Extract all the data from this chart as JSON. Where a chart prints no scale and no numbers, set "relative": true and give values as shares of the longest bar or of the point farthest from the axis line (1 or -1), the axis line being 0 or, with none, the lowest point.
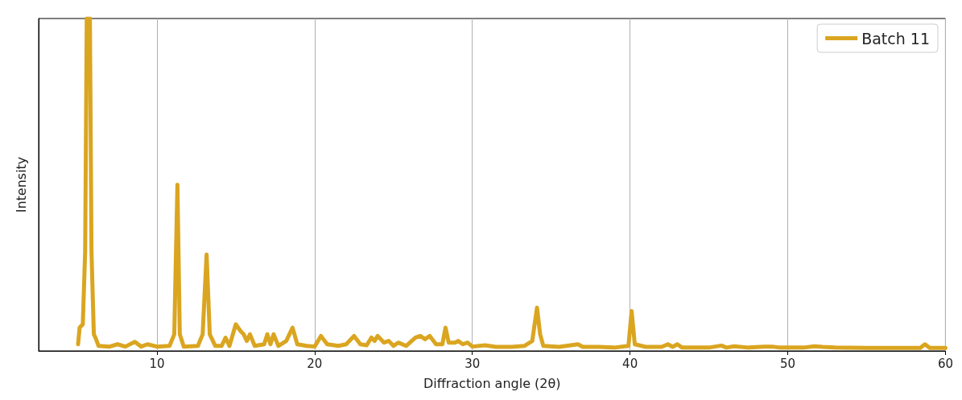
{
  "chart_data": {
    "type": "line",
    "relative": true,
    "xlabel": "Diffraction angle (2θ)",
    "ylabel": "Intensity",
    "xlim": [
      2.5,
      60
    ],
    "xticks": [
      10,
      20,
      30,
      40,
      50,
      60
    ],
    "grid": "x",
    "legend": "top right",
    "line_style": "solid",
    "marker": "none",
    "series": [
      {
        "name": "Batch 11",
        "color": "#daa520",
        "x": [
          5.0,
          5.1,
          5.3,
          5.45,
          5.55,
          5.75,
          5.85,
          6.0,
          6.1,
          6.3,
          7.0,
          7.5,
          8.0,
          8.6,
          9.0,
          9.4,
          10.0,
          10.8,
          11.1,
          11.3,
          11.45,
          11.7,
          12.6,
          12.9,
          13.15,
          13.35,
          13.7,
          14.1,
          14.35,
          14.6,
          15.0,
          15.3,
          15.5,
          15.7,
          15.9,
          16.2,
          16.8,
          17.0,
          17.2,
          17.4,
          17.7,
          18.2,
          18.6,
          18.9,
          19.5,
          20.0,
          20.4,
          20.8,
          21.5,
          22.0,
          22.5,
          22.9,
          23.3,
          23.6,
          23.8,
          24.0,
          24.4,
          24.7,
          25.0,
          25.3,
          25.8,
          26.4,
          26.7,
          27.0,
          27.3,
          27.7,
          28.1,
          28.3,
          28.5,
          28.9,
          29.1,
          29.4,
          29.7,
          30.0,
          30.8,
          31.5,
          32.5,
          33.3,
          33.8,
          34.1,
          34.3,
          34.5,
          35.5,
          36.7,
          37.0,
          38.0,
          39.0,
          39.9,
          40.1,
          40.3,
          41.0,
          42.0,
          42.4,
          42.7,
          43.0,
          43.3,
          45.0,
          45.8,
          46.1,
          46.6,
          47.5,
          48.5,
          49.0,
          49.5,
          51.0,
          51.7,
          52.2,
          53.0,
          55.0,
          57.0,
          58.4,
          58.7,
          59.0,
          60.0
        ],
        "values": [
          0.02,
          0.07,
          0.08,
          0.3,
          1.0,
          1.0,
          0.3,
          0.05,
          0.04,
          0.015,
          0.013,
          0.02,
          0.013,
          0.027,
          0.013,
          0.02,
          0.013,
          0.015,
          0.05,
          0.5,
          0.05,
          0.013,
          0.015,
          0.05,
          0.29,
          0.05,
          0.015,
          0.015,
          0.04,
          0.015,
          0.08,
          0.06,
          0.05,
          0.03,
          0.05,
          0.015,
          0.02,
          0.05,
          0.02,
          0.05,
          0.015,
          0.03,
          0.07,
          0.02,
          0.015,
          0.013,
          0.045,
          0.02,
          0.015,
          0.02,
          0.045,
          0.02,
          0.017,
          0.04,
          0.03,
          0.045,
          0.025,
          0.03,
          0.015,
          0.025,
          0.015,
          0.04,
          0.045,
          0.035,
          0.045,
          0.02,
          0.02,
          0.07,
          0.025,
          0.025,
          0.03,
          0.02,
          0.025,
          0.013,
          0.017,
          0.012,
          0.012,
          0.015,
          0.03,
          0.13,
          0.05,
          0.015,
          0.012,
          0.02,
          0.012,
          0.012,
          0.01,
          0.015,
          0.12,
          0.02,
          0.012,
          0.012,
          0.02,
          0.012,
          0.02,
          0.01,
          0.01,
          0.016,
          0.01,
          0.014,
          0.01,
          0.013,
          0.013,
          0.01,
          0.01,
          0.014,
          0.012,
          0.01,
          0.009,
          0.009,
          0.009,
          0.02,
          0.009,
          0.009
        ]
      }
    ]
  }
}
